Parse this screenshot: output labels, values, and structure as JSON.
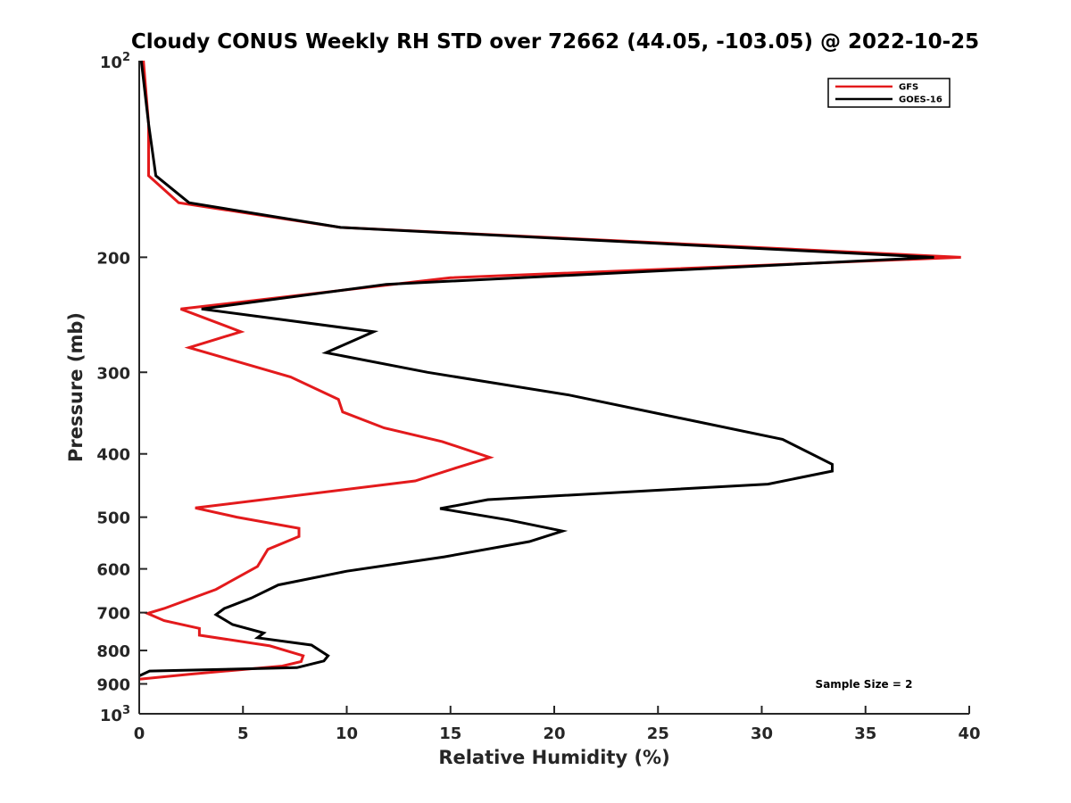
{
  "chart_data": {
    "type": "line",
    "title": "Cloudy CONUS Weekly RH STD over 72662 (44.05, -103.05) @ 2022-10-25",
    "xlabel": "Relative Humidity (%)",
    "ylabel": "Pressure (mb)",
    "xlim": [
      0,
      40
    ],
    "ylim": [
      100,
      1000
    ],
    "y_scale": "log",
    "y_direction": "reversed",
    "grid": false,
    "x_ticks": [
      0,
      5,
      10,
      15,
      20,
      25,
      30,
      35,
      40
    ],
    "y_ticks": [
      {
        "value": 100,
        "label_base": "10",
        "label_exp": "2"
      },
      {
        "value": 200,
        "label": "200"
      },
      {
        "value": 300,
        "label": "300"
      },
      {
        "value": 400,
        "label": "400"
      },
      {
        "value": 500,
        "label": "500"
      },
      {
        "value": 600,
        "label": "600"
      },
      {
        "value": 700,
        "label": "700"
      },
      {
        "value": 800,
        "label": "800"
      },
      {
        "value": 900,
        "label": "900"
      },
      {
        "value": 1000,
        "label_base": "10",
        "label_exp": "3"
      }
    ],
    "legend": {
      "position": "top-right"
    },
    "annotation": "Sample Size = 2",
    "series": [
      {
        "name": "GFS",
        "color": "#e31a1c",
        "points": [
          [
            0.2,
            100
          ],
          [
            0.45,
            125
          ],
          [
            0.45,
            150
          ],
          [
            1.9,
            165
          ],
          [
            9.7,
            180
          ],
          [
            39.6,
            200
          ],
          [
            15.0,
            215
          ],
          [
            2.0,
            240
          ],
          [
            4.9,
            260
          ],
          [
            2.4,
            275
          ],
          [
            7.3,
            305
          ],
          [
            9.6,
            330
          ],
          [
            9.8,
            345
          ],
          [
            11.8,
            365
          ],
          [
            14.6,
            383
          ],
          [
            16.9,
            405
          ],
          [
            15.3,
            420
          ],
          [
            13.3,
            440
          ],
          [
            2.7,
            484
          ],
          [
            4.7,
            500
          ],
          [
            7.7,
            520
          ],
          [
            7.7,
            535
          ],
          [
            6.2,
            560
          ],
          [
            5.7,
            595
          ],
          [
            3.7,
            645
          ],
          [
            1.2,
            690
          ],
          [
            0.4,
            702
          ],
          [
            1.2,
            720
          ],
          [
            2.9,
            740
          ],
          [
            2.9,
            758
          ],
          [
            6.3,
            787
          ],
          [
            7.9,
            815
          ],
          [
            7.8,
            832
          ],
          [
            6.9,
            845
          ],
          [
            2.4,
            870
          ],
          [
            0.0,
            885
          ]
        ]
      },
      {
        "name": "GOES-16",
        "color": "#000000",
        "points": [
          [
            0.1,
            100
          ],
          [
            0.45,
            125
          ],
          [
            0.8,
            150
          ],
          [
            2.4,
            165
          ],
          [
            9.7,
            180
          ],
          [
            38.3,
            200
          ],
          [
            11.9,
            220
          ],
          [
            3.0,
            240
          ],
          [
            11.3,
            260
          ],
          [
            9.0,
            280
          ],
          [
            13.9,
            300
          ],
          [
            20.7,
            325
          ],
          [
            31.0,
            380
          ],
          [
            33.4,
            415
          ],
          [
            33.4,
            425
          ],
          [
            30.3,
            445
          ],
          [
            16.8,
            470
          ],
          [
            14.5,
            485
          ],
          [
            17.8,
            505
          ],
          [
            20.4,
            525
          ],
          [
            18.8,
            545
          ],
          [
            14.7,
            575
          ],
          [
            10.0,
            605
          ],
          [
            6.7,
            635
          ],
          [
            5.4,
            665
          ],
          [
            4.1,
            690
          ],
          [
            3.7,
            705
          ],
          [
            4.5,
            730
          ],
          [
            6.0,
            752
          ],
          [
            5.7,
            765
          ],
          [
            8.3,
            785
          ],
          [
            9.1,
            815
          ],
          [
            8.9,
            830
          ],
          [
            7.6,
            850
          ],
          [
            0.5,
            860
          ],
          [
            0.0,
            875
          ]
        ]
      }
    ]
  }
}
